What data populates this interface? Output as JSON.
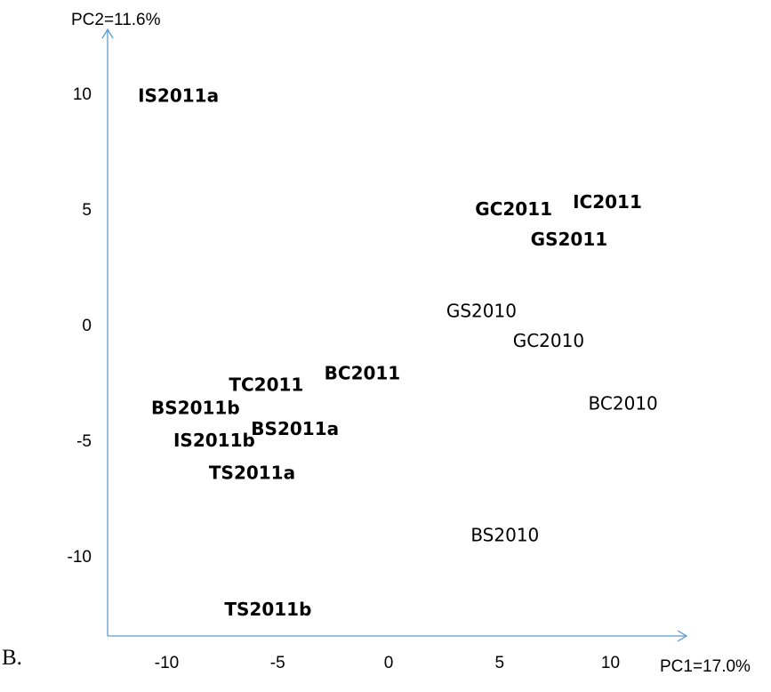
{
  "panel_label": "B.",
  "chart_data": {
    "type": "scatter",
    "title": "",
    "xlabel": "PC1=17.0%",
    "ylabel": "PC2=11.6%",
    "xlim": [
      -12.5,
      13.5
    ],
    "ylim": [
      -13.5,
      13.0
    ],
    "xticks": [
      -10,
      -5,
      0,
      5,
      10
    ],
    "yticks": [
      10,
      5,
      0,
      -5,
      -10
    ],
    "xtick_labels": [
      "-10",
      "-5",
      "0",
      "5",
      "10"
    ],
    "ytick_labels": [
      "10",
      "5",
      "0",
      "-5",
      "-10"
    ],
    "grid": false,
    "legend": "none",
    "axis_color": "#5b9bd5",
    "points": [
      {
        "label": "IS2011a",
        "x": -11.3,
        "y": 9.9,
        "bold": true
      },
      {
        "label": "GC2011",
        "x": 3.9,
        "y": 5.0,
        "bold": true
      },
      {
        "label": "IC2011",
        "x": 8.3,
        "y": 5.3,
        "bold": true
      },
      {
        "label": "GS2011",
        "x": 6.4,
        "y": 3.7,
        "bold": true
      },
      {
        "label": "GS2010",
        "x": 2.6,
        "y": 0.6,
        "bold": false
      },
      {
        "label": "GC2010",
        "x": 5.6,
        "y": -0.7,
        "bold": false
      },
      {
        "label": "BC2010",
        "x": 9.0,
        "y": -3.4,
        "bold": false
      },
      {
        "label": "BC2011",
        "x": -2.9,
        "y": -2.1,
        "bold": true
      },
      {
        "label": "TC2011",
        "x": -7.2,
        "y": -2.6,
        "bold": true
      },
      {
        "label": "BS2011b",
        "x": -10.7,
        "y": -3.6,
        "bold": true
      },
      {
        "label": "BS2011a",
        "x": -6.2,
        "y": -4.5,
        "bold": true
      },
      {
        "label": "IS2011b",
        "x": -9.7,
        "y": -5.0,
        "bold": true
      },
      {
        "label": "TS2011a",
        "x": -8.1,
        "y": -6.4,
        "bold": true
      },
      {
        "label": "BS2010",
        "x": 3.7,
        "y": -9.1,
        "bold": false
      },
      {
        "label": "TS2011b",
        "x": -7.4,
        "y": -12.3,
        "bold": true
      }
    ]
  }
}
